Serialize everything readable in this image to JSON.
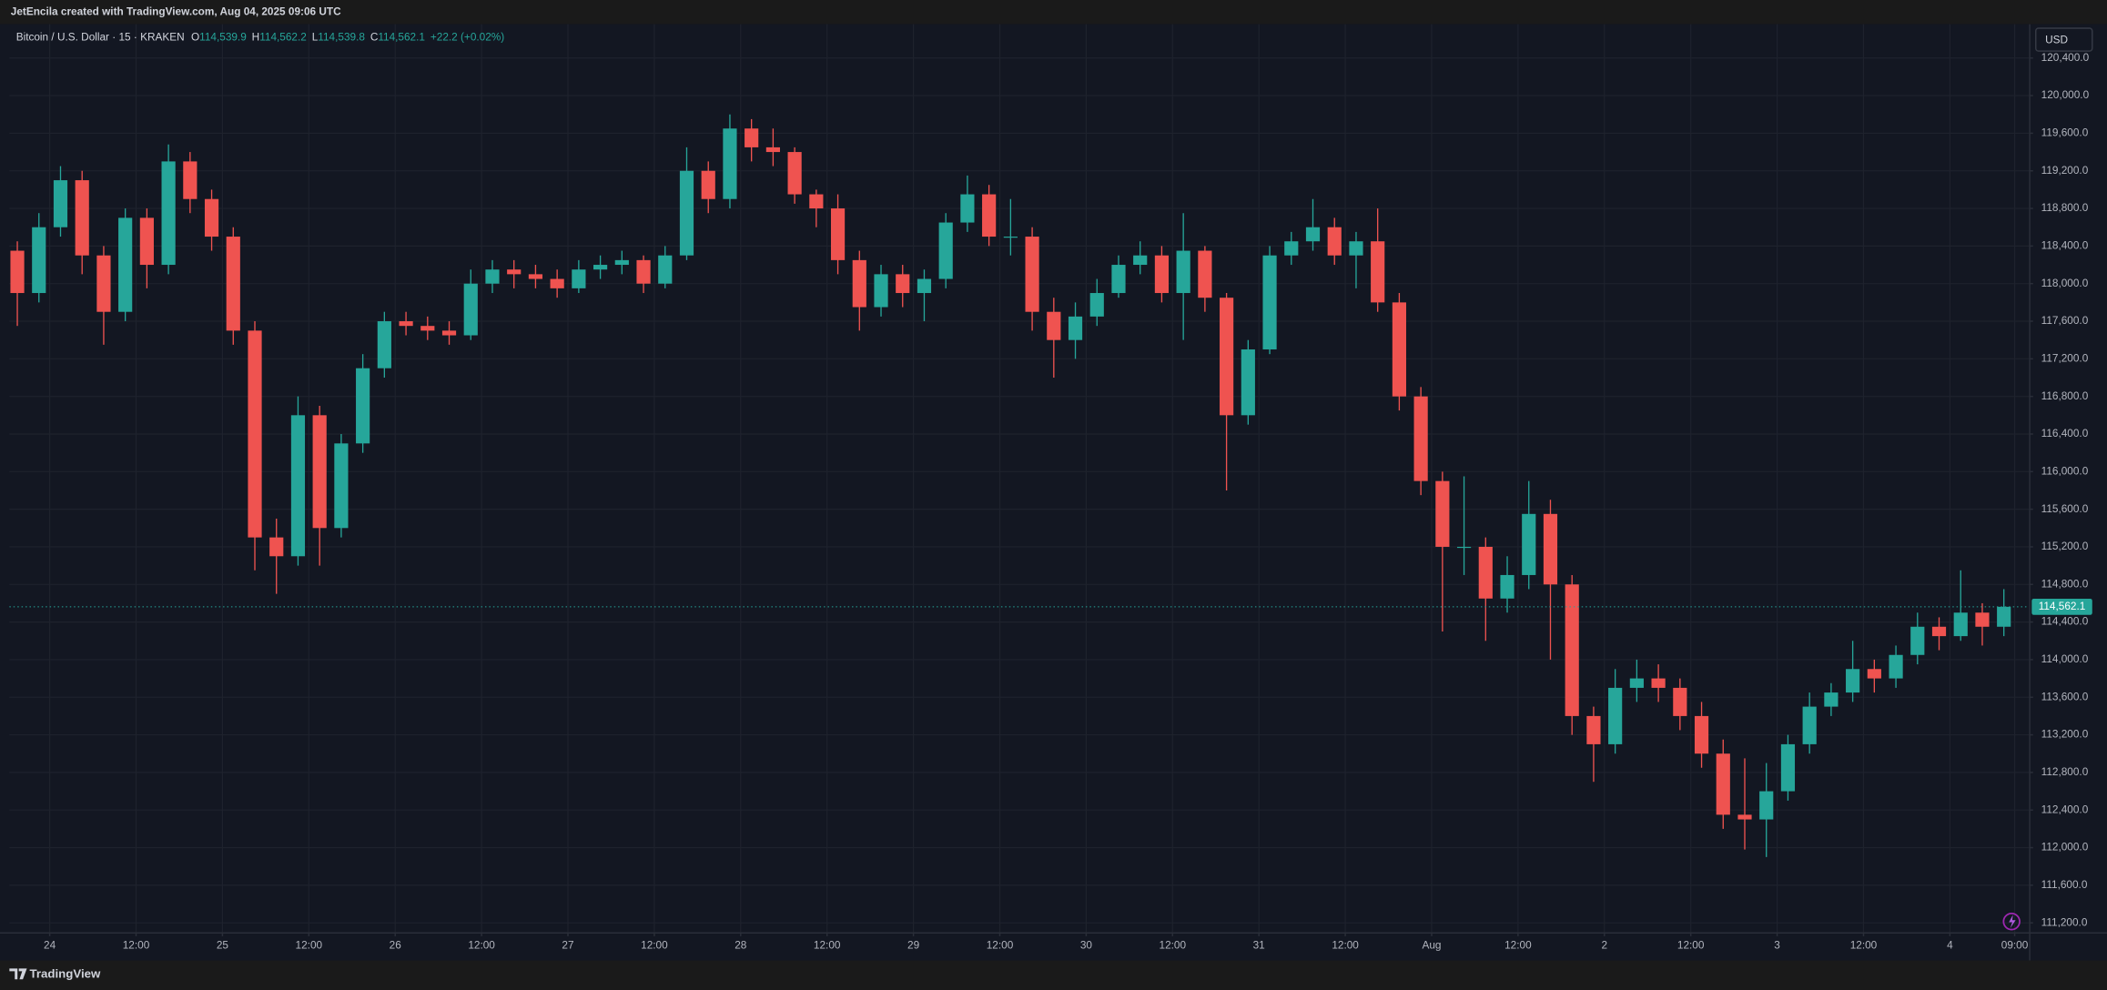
{
  "header": {
    "title": "JetEncila created with TradingView.com, Aug 04, 2025 09:06 UTC"
  },
  "footer": {
    "brand": "TradingView"
  },
  "currency_button": "USD",
  "chart_data": {
    "type": "candlestick",
    "title": "Bitcoin / U.S. Dollar · 15 · KRAKEN",
    "legend_values": [
      {
        "key": "O",
        "value": "114,539.9"
      },
      {
        "key": "H",
        "value": "114,562.2"
      },
      {
        "key": "L",
        "value": "114,539.8"
      },
      {
        "key": "C",
        "value": "114,562.1"
      }
    ],
    "change": "+22.2 (+0.02%)",
    "up_color": "#26a69a",
    "down_color": "#ef5350",
    "grid": true,
    "last_price": {
      "value": 114562.1,
      "label": "114,562.1"
    },
    "x": [
      -6,
      -3,
      0,
      3,
      6,
      9,
      12,
      15,
      18,
      21,
      24,
      27,
      30,
      33,
      36,
      39,
      42,
      45,
      48,
      51,
      54,
      57,
      60,
      63,
      66,
      69,
      72,
      75,
      78,
      81,
      84,
      87,
      90,
      93,
      96,
      99,
      102,
      105,
      108,
      111,
      114,
      117,
      120,
      123,
      126,
      129,
      132,
      135,
      138,
      141,
      144,
      147,
      150,
      153,
      156,
      159,
      162,
      165,
      168,
      171,
      174,
      177,
      180,
      183,
      186,
      189,
      192,
      195,
      198,
      201,
      204,
      207,
      210,
      213,
      216,
      219,
      222,
      225,
      228,
      231,
      234,
      237,
      240,
      243,
      246,
      249,
      252,
      255,
      258,
      261,
      264,
      267,
      270
    ],
    "open": [
      118350,
      117900,
      118600,
      119100,
      118300,
      117700,
      118700,
      118200,
      119300,
      118900,
      118500,
      117500,
      115300,
      115100,
      116600,
      115400,
      116300,
      117100,
      117600,
      117550,
      117500,
      117450,
      118000,
      118150,
      118100,
      118050,
      117950,
      118150,
      118200,
      118250,
      118000,
      118300,
      119200,
      118900,
      119650,
      119450,
      119400,
      118950,
      118800,
      118250,
      117750,
      118100,
      117900,
      118050,
      118650,
      118950,
      118500,
      118500,
      117700,
      117400,
      117650,
      117900,
      118200,
      118300,
      117900,
      118350,
      117850,
      116600,
      117300,
      118300,
      118450,
      118600,
      118300,
      118450,
      117800,
      116800,
      115900,
      115200,
      115200,
      114650,
      114900,
      115550,
      114800,
      113400,
      113100,
      113700,
      113800,
      113700,
      113400,
      113000,
      112350,
      112300,
      112600,
      113100,
      113500,
      113650,
      113900,
      113800,
      114050,
      114350,
      114250,
      114500,
      114350
    ],
    "high": [
      118450,
      118750,
      119250,
      119200,
      118400,
      118800,
      118800,
      119480,
      119400,
      119000,
      118600,
      117600,
      115500,
      116800,
      116700,
      116400,
      117250,
      117700,
      117700,
      117650,
      117600,
      118150,
      118250,
      118250,
      118200,
      118150,
      118250,
      118300,
      118350,
      118300,
      118400,
      119450,
      119300,
      119800,
      119750,
      119650,
      119450,
      119000,
      118950,
      118350,
      118200,
      118200,
      118150,
      118750,
      119150,
      119050,
      118900,
      118600,
      117850,
      117800,
      118050,
      118300,
      118450,
      118400,
      118750,
      118400,
      117900,
      117400,
      118400,
      118550,
      118900,
      118700,
      118550,
      118800,
      117900,
      116900,
      116000,
      115950,
      115300,
      115100,
      115900,
      115700,
      114900,
      113500,
      113900,
      114000,
      113950,
      113800,
      113550,
      113150,
      112950,
      112900,
      113200,
      113650,
      113750,
      114200,
      114000,
      114150,
      114500,
      114450,
      114950,
      114600,
      114750
    ],
    "low": [
      117550,
      117800,
      118500,
      118100,
      117350,
      117600,
      117950,
      118100,
      118750,
      118350,
      117350,
      114950,
      114700,
      115000,
      115000,
      115300,
      116200,
      117000,
      117450,
      117400,
      117350,
      117400,
      117900,
      117950,
      117950,
      117850,
      117900,
      118050,
      118100,
      117900,
      117950,
      118250,
      118750,
      118800,
      119300,
      119250,
      118850,
      118600,
      118100,
      117500,
      117650,
      117750,
      117600,
      117950,
      118550,
      118400,
      118300,
      117500,
      117000,
      117200,
      117550,
      117850,
      118100,
      117800,
      117400,
      117700,
      115800,
      116500,
      117250,
      118200,
      118350,
      118200,
      117950,
      117700,
      116650,
      115750,
      114300,
      114900,
      114200,
      114500,
      114750,
      114000,
      113200,
      112700,
      113000,
      113550,
      113550,
      113250,
      112850,
      112200,
      111980,
      111900,
      112500,
      113000,
      113400,
      113550,
      113650,
      113700,
      113950,
      114100,
      114200,
      114150,
      114250
    ],
    "close": [
      117900,
      118600,
      119100,
      118300,
      117700,
      118700,
      118200,
      119300,
      118900,
      118500,
      117500,
      115300,
      115100,
      116600,
      115400,
      116300,
      117100,
      117600,
      117550,
      117500,
      117450,
      118000,
      118150,
      118100,
      118050,
      117950,
      118150,
      118200,
      118250,
      118000,
      118300,
      119200,
      118900,
      119650,
      119450,
      119400,
      118950,
      118800,
      118250,
      117750,
      118100,
      117900,
      118050,
      118650,
      118950,
      118500,
      118500,
      117700,
      117400,
      117650,
      117900,
      118200,
      118300,
      117900,
      118350,
      117850,
      116600,
      117300,
      118300,
      118450,
      118600,
      118300,
      118450,
      117800,
      116800,
      115900,
      115200,
      115200,
      114650,
      114900,
      115550,
      114800,
      113400,
      113100,
      113700,
      113800,
      113700,
      113400,
      113000,
      112350,
      112300,
      112600,
      113100,
      113500,
      113650,
      113900,
      113800,
      114050,
      114350,
      114250,
      114500,
      114350,
      114562.1
    ],
    "xlim": [
      -5.6,
      275
    ],
    "xticks": [
      {
        "value": 0,
        "label": "24"
      },
      {
        "value": 12,
        "label": "12:00"
      },
      {
        "value": 24,
        "label": "25"
      },
      {
        "value": 36,
        "label": "12:00"
      },
      {
        "value": 48,
        "label": "26"
      },
      {
        "value": 60,
        "label": "12:00"
      },
      {
        "value": 72,
        "label": "27"
      },
      {
        "value": 84,
        "label": "12:00"
      },
      {
        "value": 96,
        "label": "28"
      },
      {
        "value": 108,
        "label": "12:00"
      },
      {
        "value": 120,
        "label": "29"
      },
      {
        "value": 132,
        "label": "12:00"
      },
      {
        "value": 144,
        "label": "30"
      },
      {
        "value": 156,
        "label": "12:00"
      },
      {
        "value": 168,
        "label": "31"
      },
      {
        "value": 180,
        "label": "12:00"
      },
      {
        "value": 192,
        "label": "Aug"
      },
      {
        "value": 204,
        "label": "12:00"
      },
      {
        "value": 216,
        "label": "2"
      },
      {
        "value": 228,
        "label": "12:00"
      },
      {
        "value": 240,
        "label": "3"
      },
      {
        "value": 252,
        "label": "12:00"
      },
      {
        "value": 264,
        "label": "4"
      },
      {
        "value": 273,
        "label": "09:00"
      }
    ],
    "ylim": [
      111100,
      120760
    ],
    "yticks": [
      {
        "value": 111200,
        "label": "111,200.0"
      },
      {
        "value": 111600,
        "label": "111,600.0"
      },
      {
        "value": 112000,
        "label": "112,000.0"
      },
      {
        "value": 112400,
        "label": "112,400.0"
      },
      {
        "value": 112800,
        "label": "112,800.0"
      },
      {
        "value": 113200,
        "label": "113,200.0"
      },
      {
        "value": 113600,
        "label": "113,600.0"
      },
      {
        "value": 114000,
        "label": "114,000.0"
      },
      {
        "value": 114400,
        "label": "114,400.0"
      },
      {
        "value": 114800,
        "label": "114,800.0"
      },
      {
        "value": 115200,
        "label": "115,200.0"
      },
      {
        "value": 115600,
        "label": "115,600.0"
      },
      {
        "value": 116000,
        "label": "116,000.0"
      },
      {
        "value": 116400,
        "label": "116,400.0"
      },
      {
        "value": 116800,
        "label": "116,800.0"
      },
      {
        "value": 117200,
        "label": "117,200.0"
      },
      {
        "value": 117600,
        "label": "117,600.0"
      },
      {
        "value": 118000,
        "label": "118,000.0"
      },
      {
        "value": 118400,
        "label": "118,400.0"
      },
      {
        "value": 118800,
        "label": "118,800.0"
      },
      {
        "value": 119200,
        "label": "119,200.0"
      },
      {
        "value": 119600,
        "label": "119,600.0"
      },
      {
        "value": 120000,
        "label": "120,000.0"
      },
      {
        "value": 120400,
        "label": "120,400.0"
      }
    ]
  }
}
